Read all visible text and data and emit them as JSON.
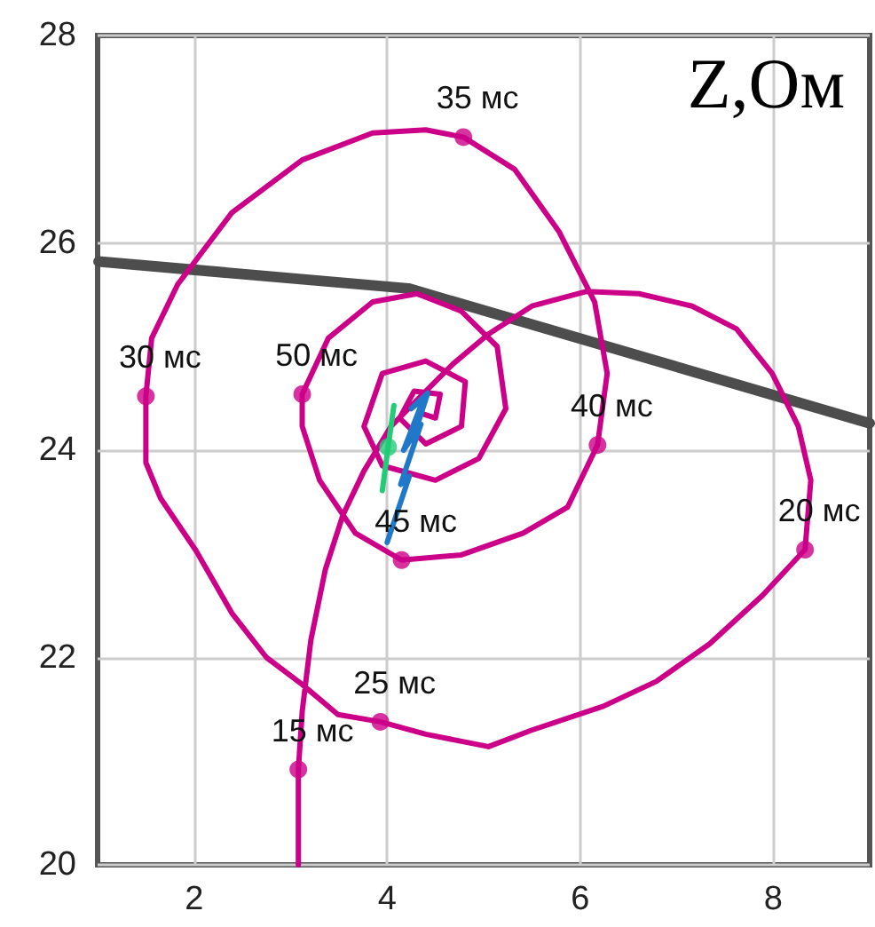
{
  "chart_data": {
    "type": "line",
    "title": "Z,Ом",
    "xlim": [
      1,
      9
    ],
    "ylim": [
      20,
      28
    ],
    "xticks": [
      2,
      4,
      6,
      8
    ],
    "yticks": [
      20,
      22,
      24,
      26,
      28
    ],
    "grid": true,
    "series": [
      {
        "color": "#4d4d4d",
        "marker": "none",
        "x": [
          1.01,
          4.22,
          9.0
        ],
        "values": [
          25.82,
          25.56,
          24.26
        ]
      },
      {
        "color": "#cc0088",
        "marker": "none",
        "x": [
          3.08,
          3.08,
          3.08,
          3.12,
          3.21,
          3.36,
          3.54,
          3.76,
          4.04,
          4.37,
          4.68,
          5.05,
          5.5,
          6.06,
          6.61,
          7.16,
          7.62,
          7.99,
          8.26,
          8.39,
          8.33,
          7.89,
          7.34,
          6.79,
          6.24,
          5.5,
          5.05,
          4.4,
          3.93,
          3.49,
          3.12,
          2.75,
          2.39,
          2.02,
          1.65,
          1.5,
          1.5,
          1.56,
          1.83,
          2.39,
          3.12,
          3.85,
          4.4,
          4.79,
          5.32,
          5.78,
          6.15,
          6.28,
          6.18,
          5.87,
          5.41,
          4.77,
          4.15,
          3.67,
          3.3,
          3.12,
          3.12,
          3.39,
          3.85,
          4.31,
          4.77,
          5.14,
          5.23,
          4.95,
          4.5,
          3.95,
          3.76,
          3.95,
          4.4,
          4.81,
          4.77,
          4.4,
          4.13,
          4.28,
          4.55,
          4.5,
          4.37
        ],
        "values": [
          20.0,
          20.45,
          20.92,
          21.48,
          22.17,
          22.85,
          23.37,
          23.8,
          24.23,
          24.54,
          24.83,
          25.12,
          25.39,
          25.53,
          25.51,
          25.39,
          25.17,
          24.74,
          24.23,
          23.71,
          23.04,
          22.6,
          22.13,
          21.77,
          21.53,
          21.3,
          21.14,
          21.26,
          21.38,
          21.45,
          21.74,
          22.0,
          22.43,
          23.03,
          23.54,
          23.88,
          24.52,
          25.08,
          25.6,
          26.29,
          26.8,
          27.06,
          27.09,
          27.02,
          26.71,
          26.11,
          25.43,
          24.74,
          24.05,
          23.45,
          23.2,
          22.99,
          22.94,
          23.2,
          23.71,
          24.23,
          24.54,
          25.08,
          25.43,
          25.51,
          25.34,
          25.0,
          24.4,
          23.92,
          23.71,
          23.85,
          24.23,
          24.74,
          24.86,
          24.66,
          24.23,
          24.06,
          24.31,
          24.57,
          24.54,
          24.31,
          24.35
        ]
      },
      {
        "type": "scatter",
        "color": "#cc0088",
        "marker": "circle",
        "x": [
          3.08,
          8.33,
          3.93,
          1.5,
          4.79,
          6.18,
          4.15,
          3.12
        ],
        "values": [
          20.92,
          23.04,
          21.38,
          24.52,
          27.02,
          24.05,
          22.94,
          24.54
        ]
      },
      {
        "color": "#1f78c8",
        "marker": "none",
        "x": [
          4.0,
          4.23,
          4.14,
          4.35,
          4.17,
          4.38,
          4.25,
          4.42,
          4.3
        ],
        "values": [
          23.11,
          23.75,
          23.67,
          24.25,
          24.0,
          24.5,
          24.4,
          24.55,
          24.2
        ]
      },
      {
        "color": "#22cc77",
        "marker": "none",
        "x": [
          4.07,
          4.01,
          3.95
        ],
        "values": [
          24.43,
          24.03,
          23.61
        ]
      },
      {
        "type": "scatter",
        "color": "#22cc77",
        "marker": "circle",
        "x": [
          4.01
        ],
        "values": [
          24.03
        ]
      }
    ],
    "annotations": [
      {
        "text": "15 мс",
        "x": 3.08,
        "y": 20.92
      },
      {
        "text": "20 мс",
        "x": 8.33,
        "y": 23.04
      },
      {
        "text": "25 мс",
        "x": 3.93,
        "y": 21.38
      },
      {
        "text": "30 мс",
        "x": 1.5,
        "y": 24.52
      },
      {
        "text": "35 мс",
        "x": 4.79,
        "y": 27.02
      },
      {
        "text": "40 мс",
        "x": 6.18,
        "y": 24.05
      },
      {
        "text": "45 мс",
        "x": 4.15,
        "y": 22.94
      },
      {
        "text": "50 мс",
        "x": 3.12,
        "y": 24.54
      }
    ]
  }
}
